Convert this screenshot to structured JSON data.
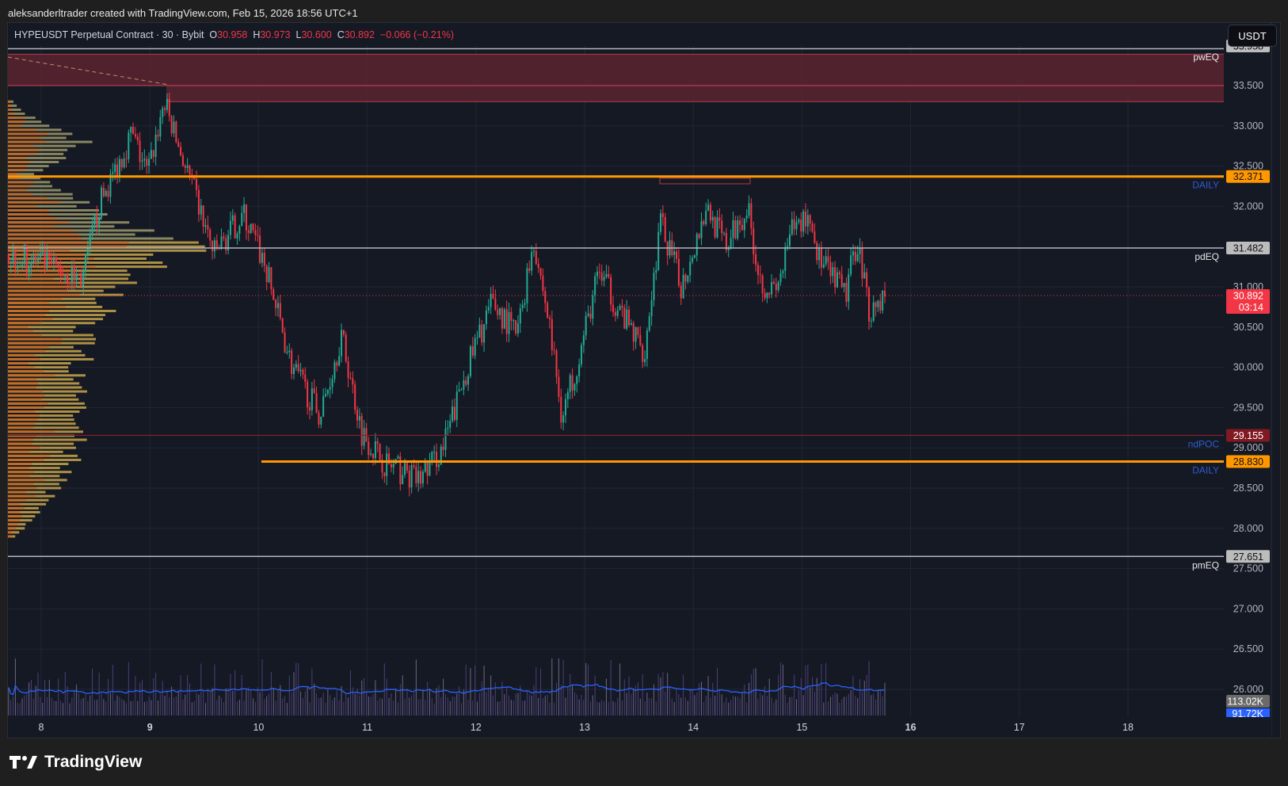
{
  "credit": "aleksanderltrader created with TradingView.com, Feb 15, 2026 18:56 UTC+1",
  "legend": {
    "symbol": "HYPEUSDT Perpetual Contract · 30 · Bybit",
    "o_label": "O",
    "o": "30.958",
    "h_label": "H",
    "h": "30.973",
    "l_label": "L",
    "l": "30.600",
    "c_label": "C",
    "c": "30.892",
    "change": "−0.066 (−0.21%)"
  },
  "currency_button": "USDT",
  "logo": "TradingView",
  "colors": {
    "up": "#22ab94",
    "down": "#f23645",
    "orange": "#ff9800",
    "zone": "#5a2530",
    "bg": "#151924"
  },
  "chart_data": {
    "type": "candlestick",
    "title": "HYPEUSDT Perpetual Contract · 30 · Bybit",
    "ylim": [
      25.9,
      34.1
    ],
    "y_ticks": [
      "33.500",
      "33.000",
      "32.500",
      "32.000",
      "31.000",
      "30.500",
      "30.000",
      "29.500",
      "29.000",
      "28.500",
      "28.000",
      "27.500",
      "27.000",
      "26.500",
      "26.000"
    ],
    "x_ticks": [
      "8",
      "9",
      "10",
      "11",
      "12",
      "13",
      "14",
      "15",
      "16",
      "17",
      "18"
    ],
    "close_path": [
      [
        7.7,
        31.4
      ],
      [
        8.0,
        31.3
      ],
      [
        8.38,
        31.1
      ],
      [
        8.53,
        32.0
      ],
      [
        8.83,
        32.9
      ],
      [
        8.98,
        32.4
      ],
      [
        9.13,
        33.3
      ],
      [
        9.25,
        32.8
      ],
      [
        9.4,
        32.2
      ],
      [
        9.59,
        31.4
      ],
      [
        9.86,
        31.9
      ],
      [
        10.05,
        31.3
      ],
      [
        10.31,
        30.0
      ],
      [
        10.57,
        29.4
      ],
      [
        10.76,
        30.4
      ],
      [
        10.95,
        29.2
      ],
      [
        11.17,
        28.8
      ],
      [
        11.47,
        28.6
      ],
      [
        11.7,
        29.0
      ],
      [
        11.92,
        30.0
      ],
      [
        12.15,
        30.8
      ],
      [
        12.38,
        30.4
      ],
      [
        12.53,
        31.6
      ],
      [
        12.68,
        30.5
      ],
      [
        12.79,
        29.4
      ],
      [
        12.98,
        30.3
      ],
      [
        13.13,
        31.2
      ],
      [
        13.36,
        30.6
      ],
      [
        13.55,
        30.2
      ],
      [
        13.7,
        31.8
      ],
      [
        13.89,
        31.0
      ],
      [
        14.12,
        32.0
      ],
      [
        14.3,
        31.5
      ],
      [
        14.5,
        32.0
      ],
      [
        14.61,
        31.1
      ],
      [
        14.76,
        30.9
      ],
      [
        14.91,
        31.7
      ],
      [
        15.06,
        31.9
      ],
      [
        15.17,
        31.3
      ],
      [
        15.4,
        30.9
      ],
      [
        15.51,
        31.6
      ],
      [
        15.62,
        30.7
      ],
      [
        15.76,
        30.892
      ]
    ],
    "volume_profile": [
      [
        27.9,
        0.05
      ],
      [
        28.3,
        0.2
      ],
      [
        28.8,
        0.35
      ],
      [
        29.2,
        0.4
      ],
      [
        29.6,
        0.38
      ],
      [
        30.0,
        0.4
      ],
      [
        30.5,
        0.45
      ],
      [
        30.9,
        0.62
      ],
      [
        31.2,
        0.8
      ],
      [
        31.48,
        1.0
      ],
      [
        31.8,
        0.6
      ],
      [
        32.1,
        0.35
      ],
      [
        32.4,
        0.15
      ],
      [
        32.8,
        0.45
      ],
      [
        33.0,
        0.2
      ],
      [
        33.3,
        0.03
      ]
    ],
    "levels": [
      {
        "label": "pwEQ",
        "price": "33.958",
        "kind": "grey"
      },
      {
        "label": "DAILY",
        "price": "32.371",
        "kind": "orange"
      },
      {
        "label": "pdEQ",
        "price": "31.482",
        "kind": "grey"
      },
      {
        "label": "ndPOC",
        "price": "29.155",
        "kind": "darkred"
      },
      {
        "label": "DAILY",
        "price": "28.830",
        "kind": "orange"
      },
      {
        "label": "pmEQ",
        "price": "27.651",
        "kind": "grey"
      }
    ],
    "last_price": "30.892",
    "countdown": "03:14",
    "volume_labels": {
      "volume": "113.02K",
      "ma": "91.72K"
    }
  }
}
